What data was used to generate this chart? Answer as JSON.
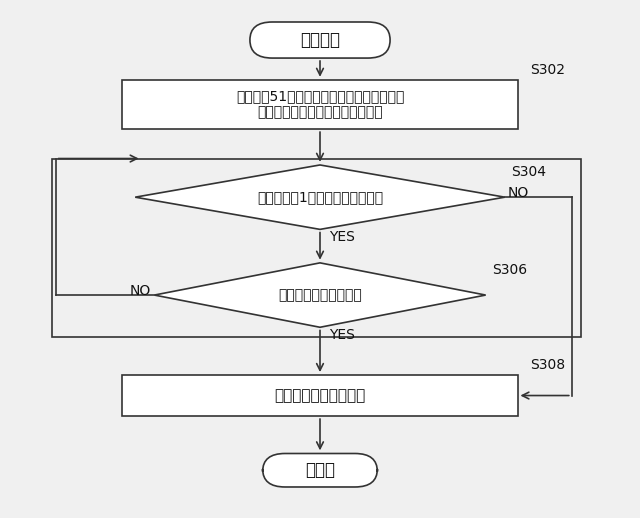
{
  "background_color": "#f0f0f0",
  "line_color": "#333333",
  "text_color": "#111111",
  "font_size": 11,
  "label_font_size": 10,
  "start_text": "スタート",
  "end_text": "エンド",
  "s302_text": "運用領域51における判定処理結果の監視、\nおよび対象プロセスの監視を開始",
  "s302_label": "S302",
  "s304_text": "自己の車両1が所定の停車状態？",
  "s304_label": "S304",
  "s306_text": "対象プロセスが消滅？",
  "s306_label": "S306",
  "s308_text": "管理プログラムを破棄",
  "s308_label": "S308",
  "yes_text": "YES",
  "no_text": "NO"
}
